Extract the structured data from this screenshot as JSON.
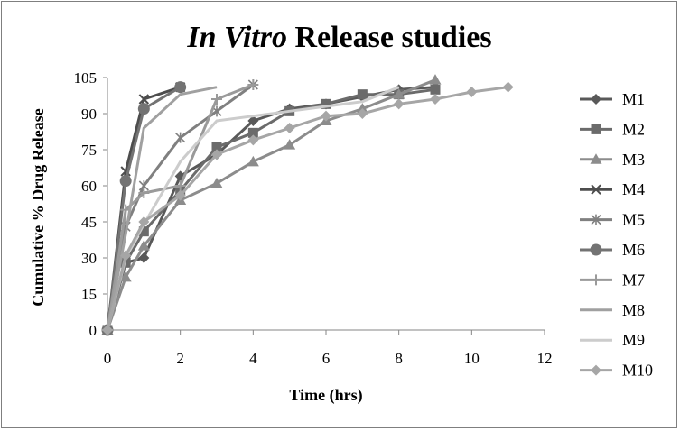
{
  "chart_data": {
    "type": "line",
    "title_italic": "In Vitro",
    "title_rest": " Release studies",
    "xlabel": "Time (hrs)",
    "ylabel": "Cumulative % Drug Release",
    "xlim": [
      0,
      12
    ],
    "ylim": [
      0,
      105
    ],
    "xticks": [
      0,
      2,
      4,
      6,
      8,
      10,
      12
    ],
    "yticks": [
      0,
      15,
      30,
      45,
      60,
      75,
      90,
      105
    ],
    "grid": false,
    "legend_position": "right",
    "series": [
      {
        "name": "M1",
        "color": "#595959",
        "marker": "diamond",
        "x": [
          0,
          0.5,
          1,
          2,
          3,
          4,
          5,
          6,
          7,
          8,
          9
        ],
        "y": [
          0,
          28,
          30,
          64,
          73,
          87,
          92,
          94,
          97,
          100,
          101
        ]
      },
      {
        "name": "M2",
        "color": "#6b6b6b",
        "marker": "square",
        "x": [
          0,
          0.5,
          1,
          2,
          3,
          4,
          5,
          6,
          7,
          8,
          9
        ],
        "y": [
          0,
          28,
          41,
          58,
          76,
          82,
          91,
          94,
          98,
          98,
          100
        ]
      },
      {
        "name": "M3",
        "color": "#8c8c8c",
        "marker": "triangle",
        "x": [
          0,
          0.5,
          1,
          2,
          3,
          4,
          5,
          6,
          7,
          8,
          9
        ],
        "y": [
          0,
          22,
          35,
          54,
          61,
          70,
          77,
          87,
          92,
          98,
          104
        ]
      },
      {
        "name": "M4",
        "color": "#4d4d4d",
        "marker": "x",
        "x": [
          0,
          0.5,
          1,
          2
        ],
        "y": [
          0,
          66,
          96,
          101
        ]
      },
      {
        "name": "M5",
        "color": "#808080",
        "marker": "star",
        "x": [
          0,
          0.5,
          1,
          2,
          3,
          4
        ],
        "y": [
          0,
          43,
          60,
          80,
          91,
          102
        ]
      },
      {
        "name": "M6",
        "color": "#737373",
        "marker": "circle",
        "x": [
          0,
          0.5,
          1,
          2
        ],
        "y": [
          0,
          62,
          92,
          101
        ]
      },
      {
        "name": "M7",
        "color": "#9a9a9a",
        "marker": "plus",
        "x": [
          0,
          0.5,
          1,
          2,
          3,
          4
        ],
        "y": [
          0,
          50,
          57,
          60,
          96,
          102
        ]
      },
      {
        "name": "M8",
        "color": "#a0a0a0",
        "marker": "none",
        "x": [
          0,
          0.5,
          1,
          2,
          3
        ],
        "y": [
          0,
          40,
          84,
          98,
          101
        ]
      },
      {
        "name": "M9",
        "color": "#cccccc",
        "marker": "none",
        "x": [
          0,
          0.5,
          1,
          2,
          3,
          4,
          5,
          6,
          7,
          8
        ],
        "y": [
          0,
          30,
          44,
          70,
          87,
          89,
          91,
          93,
          95,
          101
        ]
      },
      {
        "name": "M10",
        "color": "#a6a6a6",
        "marker": "diamond",
        "x": [
          0,
          0.5,
          1,
          2,
          3,
          4,
          5,
          6,
          7,
          8,
          9,
          10,
          11
        ],
        "y": [
          0,
          31,
          45,
          56,
          73,
          79,
          84,
          89,
          90,
          94,
          96,
          99,
          101
        ]
      }
    ]
  }
}
